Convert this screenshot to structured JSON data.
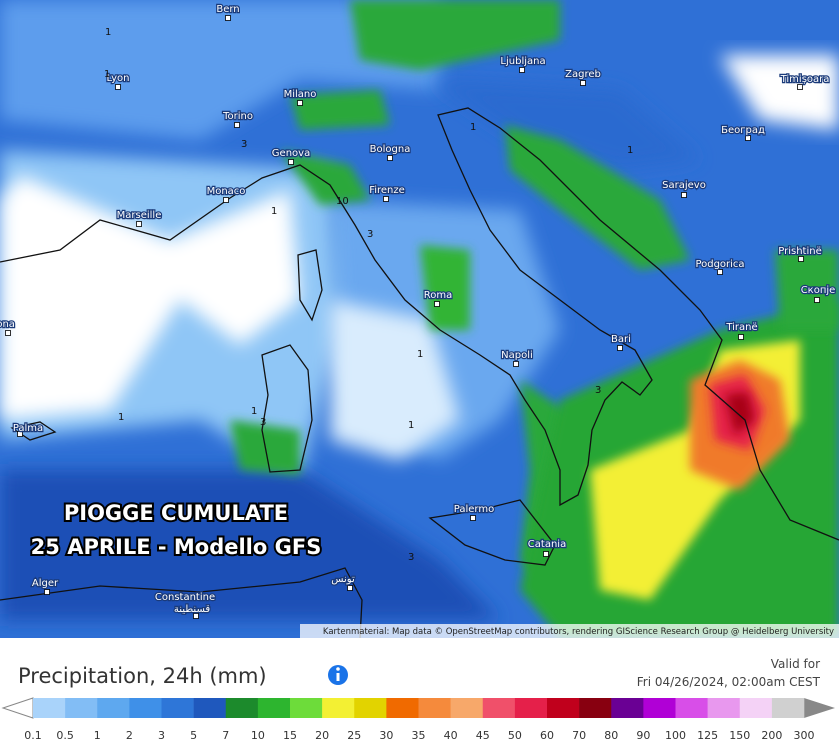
{
  "map": {
    "overlay_title": [
      "PIOGGE CUMULATE",
      "25 APRILE - Modello GFS"
    ],
    "cities": [
      "Bern",
      "Lyon",
      "Milano",
      "Torino",
      "Genova",
      "Bologna",
      "Ljubljana",
      "Zagreb",
      "Timișoara",
      "Београд",
      "Sarajevo",
      "Monaco",
      "Marseille",
      "Firenze",
      "Podgorica",
      "Prishtinë",
      "Скопје",
      "Roma",
      "Tiranë",
      "Napoli",
      "Bari",
      "Barcelona",
      "Palma",
      "Palermo",
      "Catania",
      "Alger",
      "Constantine",
      "قسنطينة",
      "تونس"
    ],
    "contour_labels": [
      1,
      1,
      3,
      1,
      10,
      3,
      1,
      1,
      1,
      1,
      3,
      1,
      3,
      3,
      1
    ],
    "attribution": "Kartenmaterial: Map data © OpenStreetMap contributors, rendering GIScience Research Group @ Heidelberg University"
  },
  "legend": {
    "title": "Precipitation, 24h (mm)",
    "valid_label": "Valid for",
    "valid_time": "Fri 04/26/2024, 02:00am CEST",
    "labels": [
      0.1,
      0.5,
      1,
      2,
      3,
      5,
      7,
      10,
      15,
      20,
      25,
      30,
      35,
      40,
      45,
      50,
      60,
      70,
      80,
      90,
      100,
      125,
      150,
      200,
      300
    ],
    "colors": [
      "#a9d3fa",
      "#82bdf5",
      "#5ea8ef",
      "#3f90e8",
      "#2e76d8",
      "#1f58bd",
      "#1c8a2c",
      "#2db52f",
      "#6ddc3a",
      "#f3f033",
      "#e2d300",
      "#f06a00",
      "#f58a3c",
      "#f7a86a",
      "#f0506a",
      "#e5204a",
      "#c0001c",
      "#880010",
      "#6a0094",
      "#b000d6",
      "#d84ee8",
      "#e898ee",
      "#f4d2f6",
      "#d0d0d0"
    ]
  }
}
